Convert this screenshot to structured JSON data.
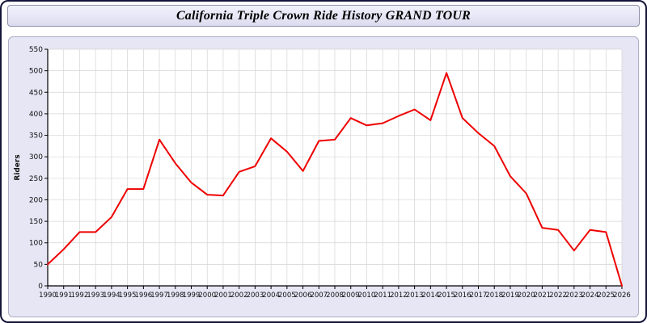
{
  "title_bar": {
    "title": "California Triple Crown Ride History GRAND TOUR"
  },
  "chart_data": {
    "type": "line",
    "title": "California Triple Crown Ride History GRAND TOUR",
    "xlabel": "",
    "ylabel": "Riders",
    "x": [
      1990,
      1991,
      1992,
      1993,
      1994,
      1995,
      1996,
      1997,
      1998,
      1999,
      2000,
      2001,
      2002,
      2003,
      2004,
      2005,
      2006,
      2007,
      2008,
      2009,
      2010,
      2011,
      2012,
      2013,
      2014,
      2015,
      2016,
      2017,
      2018,
      2019,
      2020,
      2021,
      2022,
      2023,
      2024,
      2025,
      2026
    ],
    "series": [
      {
        "name": "Riders",
        "color": "#ee0000",
        "values": [
          50,
          85,
          125,
          125,
          160,
          225,
          225,
          340,
          285,
          240,
          212,
          210,
          265,
          278,
          343,
          312,
          267,
          337,
          340,
          390,
          373,
          378,
          395,
          410,
          385,
          495,
          390,
          355,
          325,
          255,
          215,
          135,
          130,
          82,
          130,
          125,
          0
        ]
      }
    ],
    "ylim": [
      0,
      550
    ],
    "ytick_step": 50,
    "grid": true,
    "legend": "none",
    "plot_bg": "#ffffff",
    "panel_bg": "#e6e6f5",
    "grid_color": "#d4d4d4",
    "axis_color": "#000000"
  }
}
